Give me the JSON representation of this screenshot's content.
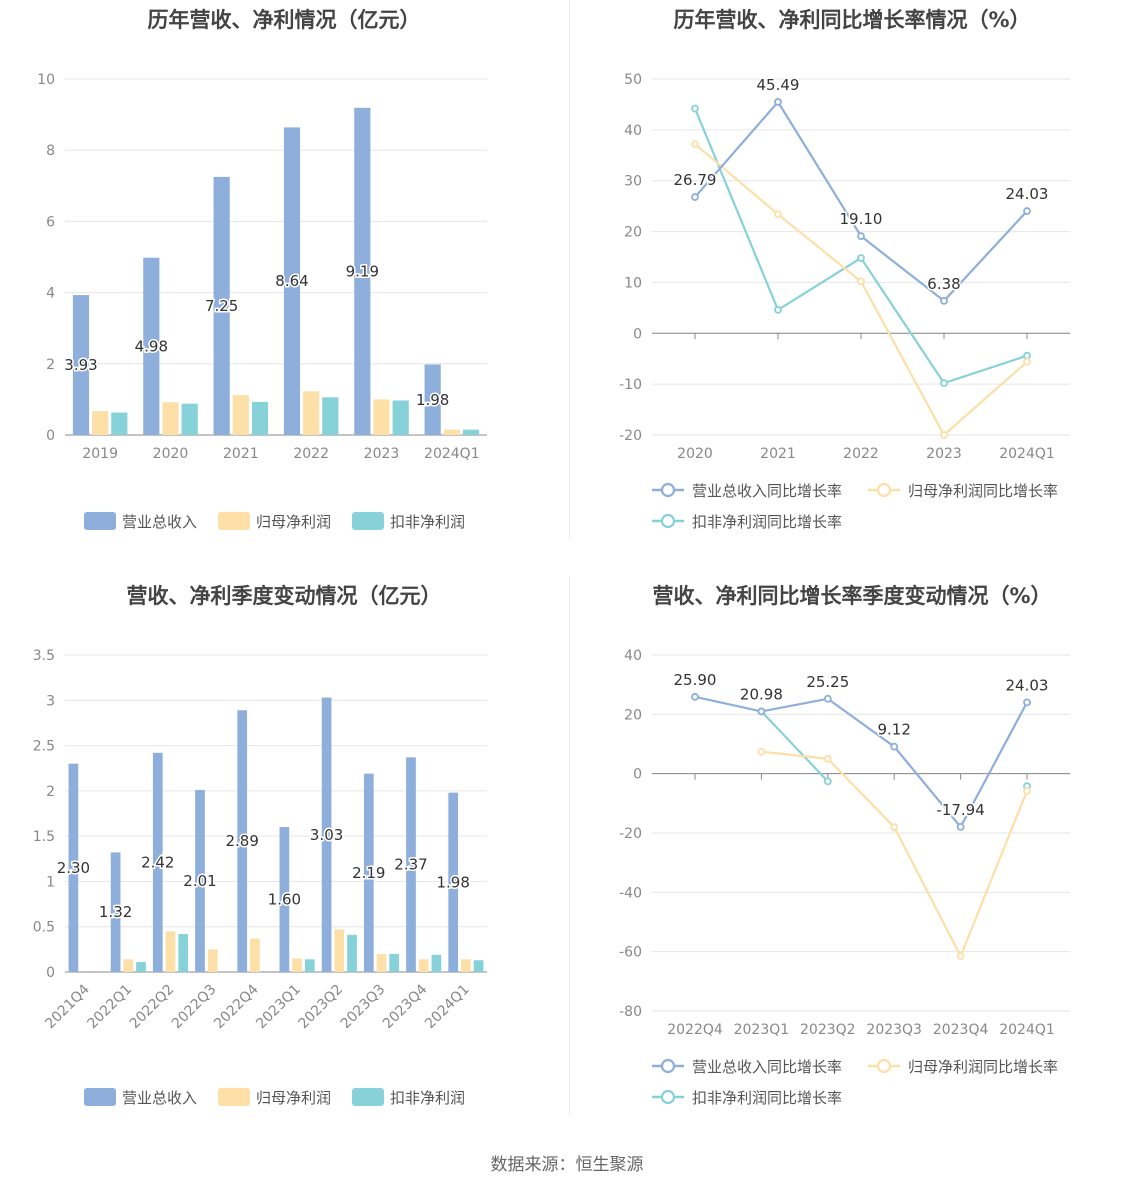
{
  "footer": "数据来源：恒生聚源",
  "colors": {
    "revenue": "#8eaedb",
    "parent_profit": "#fddfa8",
    "deducted_profit": "#86d2d8",
    "grid": "#e6e6e6",
    "axis": "#888888"
  },
  "chart_data": [
    {
      "id": "annual_bar",
      "type": "bar",
      "title": "历年营收、净利情况（亿元）",
      "categories": [
        "2019",
        "2020",
        "2021",
        "2022",
        "2023",
        "2024Q1"
      ],
      "ylim": [
        0,
        10
      ],
      "yticks": [
        "0",
        "2",
        "4",
        "6",
        "8",
        "10"
      ],
      "series": [
        {
          "name": "营业总收入",
          "values": [
            3.93,
            4.98,
            7.25,
            8.64,
            9.19,
            1.98
          ],
          "labels": [
            "3.93",
            "4.98",
            "7.25",
            "8.64",
            "9.19",
            "1.98"
          ]
        },
        {
          "name": "归母净利润",
          "values": [
            0.67,
            0.92,
            1.12,
            1.23,
            1.0,
            0.15
          ]
        },
        {
          "name": "扣非净利润",
          "values": [
            0.63,
            0.88,
            0.93,
            1.06,
            0.97,
            0.15
          ]
        }
      ],
      "legend": "bottom",
      "grid": true
    },
    {
      "id": "annual_line",
      "type": "line",
      "title": "历年营收、净利同比增长率情况（%）",
      "categories": [
        "2020",
        "2021",
        "2022",
        "2023",
        "2024Q1"
      ],
      "ylim": [
        -20,
        50
      ],
      "yticks": [
        "-20",
        "-10",
        "0",
        "10",
        "20",
        "30",
        "40",
        "50"
      ],
      "series": [
        {
          "name": "营业总收入同比增长率",
          "values": [
            26.79,
            45.49,
            19.1,
            6.38,
            24.03
          ],
          "labels": [
            "26.79",
            "45.49",
            "19.10",
            "6.38",
            "24.03"
          ]
        },
        {
          "name": "归母净利润同比增长率",
          "values": [
            37.2,
            23.4,
            10.2,
            -20.0,
            -5.6
          ]
        },
        {
          "name": "扣非净利润同比增长率",
          "values": [
            44.2,
            4.6,
            14.8,
            -9.8,
            -4.4
          ]
        }
      ],
      "legend": "bottom",
      "grid": true
    },
    {
      "id": "quarter_bar",
      "type": "bar",
      "title": "营收、净利季度变动情况（亿元）",
      "categories": [
        "2021Q4",
        "2022Q1",
        "2022Q2",
        "2022Q3",
        "2022Q4",
        "2023Q1",
        "2023Q2",
        "2023Q3",
        "2023Q4",
        "2024Q1"
      ],
      "ylim": [
        0,
        3.5
      ],
      "yticks": [
        "0",
        "0.5",
        "1",
        "1.5",
        "2",
        "2.5",
        "3",
        "3.5"
      ],
      "series": [
        {
          "name": "营业总收入",
          "values": [
            2.3,
            1.32,
            2.42,
            2.01,
            2.89,
            1.6,
            3.03,
            2.19,
            2.37,
            1.98
          ],
          "labels": [
            "2.30",
            "1.32",
            "2.42",
            "2.01",
            "2.89",
            "1.60",
            "3.03",
            "2.19",
            "2.37",
            "1.98"
          ]
        },
        {
          "name": "归母净利润",
          "values": [
            0.0,
            0.14,
            0.45,
            0.25,
            0.37,
            0.15,
            0.47,
            0.2,
            0.14,
            0.14
          ]
        },
        {
          "name": "扣非净利润",
          "values": [
            0.0,
            0.11,
            0.42,
            0.0,
            0.0,
            0.14,
            0.41,
            0.2,
            0.19,
            0.13
          ]
        }
      ],
      "legend": "bottom",
      "grid": true
    },
    {
      "id": "quarter_line",
      "type": "line",
      "title": "营收、净利同比增长率季度变动情况（%）",
      "categories": [
        "2022Q4",
        "2023Q1",
        "2023Q2",
        "2023Q3",
        "2023Q4",
        "2024Q1"
      ],
      "ylim": [
        -80,
        40
      ],
      "yticks": [
        "-80",
        "-60",
        "-40",
        "-20",
        "0",
        "20",
        "40"
      ],
      "series": [
        {
          "name": "营业总收入同比增长率",
          "values": [
            25.9,
            20.98,
            25.25,
            9.12,
            -17.94,
            24.03
          ],
          "labels": [
            "25.90",
            "20.98",
            "25.25",
            "9.12",
            "-17.94",
            "24.03"
          ]
        },
        {
          "name": "归母净利润同比增长率",
          "values": [
            null,
            7.4,
            5.0,
            -18.0,
            -61.5,
            -5.8
          ]
        },
        {
          "name": "扣非净利润同比增长率",
          "values": [
            null,
            20.98,
            -2.6,
            null,
            null,
            -4.2
          ]
        }
      ],
      "legend": "bottom",
      "grid": true
    }
  ]
}
